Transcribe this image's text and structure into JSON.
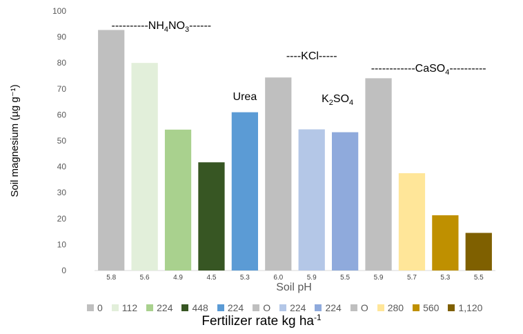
{
  "chart_data": {
    "type": "bar",
    "ylabel": "Soil magnesium (µg g⁻¹)",
    "xlabel": "Soil pH",
    "bottom_title": {
      "text": "Fertilizer rate kg ha",
      "sup": "-1"
    },
    "ylim": [
      0,
      100
    ],
    "yticks": [
      0,
      10,
      20,
      30,
      40,
      50,
      60,
      70,
      80,
      90,
      100
    ],
    "grid": false,
    "legend_position": "bottom",
    "categories": [
      "5.8",
      "5.6",
      "4.9",
      "4.5",
      "5.3",
      "6.0",
      "5.9",
      "5.5",
      "5.9",
      "5.7",
      "5.3",
      "5.5"
    ],
    "series": [
      {
        "name": "0",
        "color": "#bfbfbf",
        "value": 92.7
      },
      {
        "name": "112",
        "color": "#e2efda",
        "value": 80.0
      },
      {
        "name": "224",
        "color": "#a9d18e",
        "value": 54.3
      },
      {
        "name": "448",
        "color": "#375623",
        "value": 41.7
      },
      {
        "name": "224",
        "color": "#5b9bd5",
        "value": 61.0
      },
      {
        "name": "O",
        "color": "#bfbfbf",
        "value": 74.4
      },
      {
        "name": "224",
        "color": "#b4c7e7",
        "value": 54.4
      },
      {
        "name": "224",
        "color": "#8faadc",
        "value": 53.3
      },
      {
        "name": "O",
        "color": "#bfbfbf",
        "value": 74.1
      },
      {
        "name": "280",
        "color": "#ffe699",
        "value": 37.5
      },
      {
        "name": "560",
        "color": "#bf9000",
        "value": 21.3
      },
      {
        "name": "1,120",
        "color": "#7f6000",
        "value": 14.5
      }
    ],
    "annotations": [
      {
        "pre": "----------NH",
        "sub1": "4",
        "mid": "NO",
        "sub2": "3",
        "post": "------"
      },
      {
        "pre": "Urea",
        "sub1": "",
        "mid": "",
        "sub2": "",
        "post": ""
      },
      {
        "pre": "----KCl-----",
        "sub1": "",
        "mid": "",
        "sub2": "",
        "post": ""
      },
      {
        "pre": "K",
        "sub1": "2",
        "mid": "SO",
        "sub2": "4",
        "post": ""
      },
      {
        "pre": "------------CaSO",
        "sub1": "4",
        "mid": "",
        "sub2": "",
        "post": "----------"
      }
    ]
  }
}
